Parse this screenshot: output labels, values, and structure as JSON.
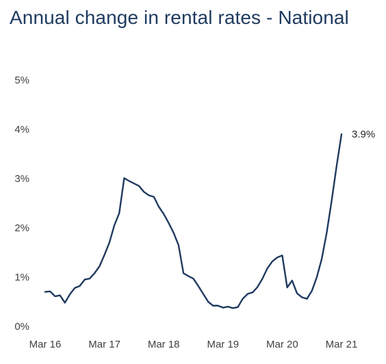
{
  "chart_data": {
    "type": "line",
    "title": "Annual change in rental rates - National",
    "xlabel": "",
    "ylabel": "",
    "ylim": [
      0,
      5
    ],
    "yticks": [
      "0%",
      "1%",
      "2%",
      "3%",
      "4%",
      "5%"
    ],
    "xticks": [
      "Mar 16",
      "Mar 17",
      "Mar 18",
      "Mar 19",
      "Mar 20",
      "Mar 21"
    ],
    "grid": false,
    "legend": "none",
    "line_color": "#1f3a5f",
    "series": [
      {
        "x": [
          "Mar 16",
          "Apr 16",
          "May 16",
          "Jun 16",
          "Jul 16",
          "Aug 16",
          "Sep 16",
          "Oct 16",
          "Nov 16",
          "Dec 16",
          "Jan 17",
          "Feb 17",
          "Mar 17",
          "Apr 17",
          "May 17",
          "Jun 17",
          "Jul 17",
          "Aug 17",
          "Sep 17",
          "Oct 17",
          "Nov 17",
          "Dec 17",
          "Jan 18",
          "Feb 18",
          "Mar 18",
          "Apr 18",
          "May 18",
          "Jun 18",
          "Jul 18",
          "Aug 18",
          "Sep 18",
          "Oct 18",
          "Nov 18",
          "Dec 18",
          "Jan 19",
          "Feb 19",
          "Mar 19",
          "Apr 19",
          "May 19",
          "Jun 19",
          "Jul 19",
          "Aug 19",
          "Sep 19",
          "Oct 19",
          "Nov 19",
          "Dec 19",
          "Jan 20",
          "Feb 20",
          "Mar 20",
          "Apr 20",
          "May 20",
          "Jun 20",
          "Jul 20",
          "Aug 20",
          "Sep 20",
          "Oct 20",
          "Nov 20",
          "Dec 20",
          "Jan 21",
          "Feb 21",
          "Mar 21"
        ],
        "values": [
          0.7,
          0.71,
          0.61,
          0.63,
          0.48,
          0.65,
          0.78,
          0.82,
          0.95,
          0.97,
          1.08,
          1.22,
          1.45,
          1.7,
          2.05,
          2.3,
          3.01,
          2.95,
          2.9,
          2.85,
          2.73,
          2.66,
          2.63,
          2.43,
          2.28,
          2.1,
          1.9,
          1.65,
          1.08,
          1.02,
          0.97,
          0.82,
          0.66,
          0.5,
          0.42,
          0.42,
          0.38,
          0.4,
          0.37,
          0.39,
          0.56,
          0.66,
          0.69,
          0.8,
          0.97,
          1.18,
          1.32,
          1.4,
          1.44,
          0.79,
          0.93,
          0.67,
          0.59,
          0.56,
          0.72,
          1.0,
          1.37,
          1.9,
          2.55,
          3.25,
          3.9
        ]
      }
    ],
    "annotations": [
      {
        "label": "3.9%",
        "value": 3.9,
        "x": "Mar 21"
      }
    ]
  }
}
